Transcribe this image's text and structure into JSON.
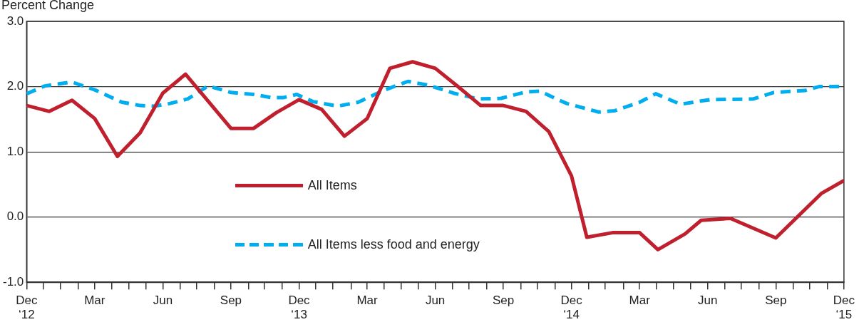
{
  "chart_data": {
    "type": "line",
    "ylabel": "Percent Change",
    "xlim": [
      "2012-12",
      "2015-12"
    ],
    "ylim": [
      -1,
      3
    ],
    "xticks": [
      {
        "value": "2012-12",
        "label": "Dec\n‘12"
      },
      {
        "value": "2012-12-24",
        "label": null
      },
      {
        "value": "2013-01-16",
        "label": null
      },
      {
        "value": "2013-02-09",
        "label": null
      },
      {
        "value": "2013-03",
        "label": "Mar"
      },
      {
        "value": "2013-03-24",
        "label": null
      },
      {
        "value": "2013-04-16",
        "label": null
      },
      {
        "value": "2013-05-09",
        "label": null
      },
      {
        "value": "2013-06",
        "label": "Jun"
      },
      {
        "value": "2013-06-24",
        "label": null
      },
      {
        "value": "2013-07-16",
        "label": null
      },
      {
        "value": "2013-08-09",
        "label": null
      },
      {
        "value": "2013-09",
        "label": "Sep"
      },
      {
        "value": "2013-09-24",
        "label": null
      },
      {
        "value": "2013-10-16",
        "label": null
      },
      {
        "value": "2013-11-09",
        "label": null
      },
      {
        "value": "2013-12",
        "label": "Dec\n‘13"
      },
      {
        "value": "2013-12-24",
        "label": null
      },
      {
        "value": "2014-01-16",
        "label": null
      },
      {
        "value": "2014-02-09",
        "label": null
      },
      {
        "value": "2014-03",
        "label": "Mar"
      },
      {
        "value": "2014-03-24",
        "label": null
      },
      {
        "value": "2014-04-16",
        "label": null
      },
      {
        "value": "2014-05-09",
        "label": null
      },
      {
        "value": "2014-06",
        "label": "Jun"
      },
      {
        "value": "2014-06-24",
        "label": null
      },
      {
        "value": "2014-07-16",
        "label": null
      },
      {
        "value": "2014-08-09",
        "label": null
      },
      {
        "value": "2014-09",
        "label": "Sep"
      },
      {
        "value": "2014-09-24",
        "label": null
      },
      {
        "value": "2014-10-16",
        "label": null
      },
      {
        "value": "2014-11-09",
        "label": null
      },
      {
        "value": "2014-12",
        "label": "Dec\n‘14"
      },
      {
        "value": "2014-12-24",
        "label": null
      },
      {
        "value": "2015-01-16",
        "label": null
      },
      {
        "value": "2015-02-09",
        "label": null
      },
      {
        "value": "2015-03",
        "label": "Mar"
      },
      {
        "value": "2015-03-24",
        "label": null
      },
      {
        "value": "2015-04-16",
        "label": null
      },
      {
        "value": "2015-05-09",
        "label": null
      },
      {
        "value": "2015-06",
        "label": "Jun"
      },
      {
        "value": "2015-06-24",
        "label": null
      },
      {
        "value": "2015-07-16",
        "label": null
      },
      {
        "value": "2015-08-09",
        "label": null
      },
      {
        "value": "2015-09",
        "label": "Sep"
      },
      {
        "value": "2015-09-24",
        "label": null
      },
      {
        "value": "2015-10-16",
        "label": null
      },
      {
        "value": "2015-11-09",
        "label": null
      },
      {
        "value": "2015-12",
        "label": "Dec\n‘15"
      }
    ],
    "yticks": [
      {
        "value": -1,
        "label": "-1.0"
      },
      {
        "value": 0,
        "label": "0.0"
      },
      {
        "value": 1,
        "label": "1.0"
      },
      {
        "value": 2,
        "label": "2.0"
      },
      {
        "value": 3,
        "label": "3.0"
      }
    ],
    "grid": "y",
    "legend": "center",
    "marker": "none",
    "series": [
      {
        "name": "All Items",
        "color": "#c0202e",
        "line_style": "solid",
        "x": [
          "2012-12",
          "2013-01",
          "2013-02",
          "2013-03",
          "2013-04",
          "2013-05",
          "2013-06",
          "2013-07",
          "2013-09",
          "2013-10",
          "2013-11",
          "2013-12",
          "2014-01",
          "2014-02",
          "2014-03",
          "2014-04",
          "2014-05",
          "2014-06",
          "2014-07",
          "2014-08",
          "2014-09",
          "2014-10",
          "2014-11",
          "2014-12",
          "2014-12-22",
          "2015-01-26",
          "2015-03",
          "2015-03-26",
          "2015-05",
          "2015-05-23",
          "2015-07",
          "2015-09",
          "2015-11",
          "2015-12"
        ],
        "values": [
          1.71,
          1.62,
          1.79,
          1.51,
          0.93,
          1.29,
          1.9,
          2.19,
          1.36,
          1.36,
          1.6,
          1.8,
          1.65,
          1.24,
          1.51,
          2.28,
          2.38,
          2.28,
          2,
          1.71,
          1.71,
          1.62,
          1.31,
          0.63,
          -0.31,
          -0.24,
          -0.24,
          -0.5,
          -0.26,
          -0.05,
          -0.02,
          -0.32,
          0.36,
          0.56
        ]
      },
      {
        "name": "All Items less food and energy",
        "color": "#00aeef",
        "line_style": "dashed",
        "x": [
          "2012-12",
          "2012-12-26",
          "2013-02",
          "2013-03",
          "2013-04-07",
          "2013-05",
          "2013-05-20",
          "2013-06-10",
          "2013-07-04",
          "2013-08",
          "2013-09",
          "2013-10",
          "2013-10-26",
          "2013-11-10",
          "2013-11-28",
          "2013-12-20",
          "2014-01-23",
          "2014-02-18",
          "2014-03-23",
          "2014-04-25",
          "2014-05-23",
          "2014-06-25",
          "2014-07-29",
          "2014-08-29",
          "2014-10",
          "2014-10-20",
          "2014-11-13",
          "2014-11-25",
          "2015-01-07",
          "2015-01-29",
          "2015-03",
          "2015-03-23",
          "2015-04-25",
          "2015-06-04",
          "2015-08",
          "2015-08-29",
          "2015-10-10",
          "2015-10-29",
          "2015-12"
        ],
        "values": [
          1.89,
          2.01,
          2.07,
          1.95,
          1.76,
          1.71,
          1.7,
          1.74,
          1.81,
          2.01,
          1.91,
          1.88,
          1.83,
          1.83,
          1.88,
          1.77,
          1.7,
          1.76,
          1.94,
          2.08,
          2.02,
          1.9,
          1.81,
          1.82,
          1.92,
          1.93,
          1.8,
          1.74,
          1.61,
          1.63,
          1.76,
          1.89,
          1.73,
          1.8,
          1.81,
          1.91,
          1.94,
          2,
          2
        ]
      }
    ]
  }
}
